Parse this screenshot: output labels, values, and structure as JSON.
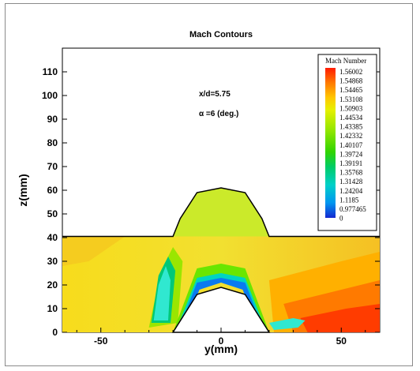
{
  "chart_data": {
    "type": "heatmap",
    "title": "Mach Contours",
    "xlabel": "y(mm)",
    "ylabel": "z(mm)",
    "xlim": [
      -66,
      66
    ],
    "ylim": [
      0,
      120
    ],
    "x_ticks": [
      -50,
      0,
      50
    ],
    "y_ticks": [
      0,
      10,
      20,
      30,
      40,
      50,
      60,
      70,
      80,
      90,
      100,
      110
    ],
    "annotations": [
      "x/d=5.75",
      "α =6 (deg.)"
    ],
    "legend": {
      "title": "Mach Number",
      "placement": "top-right",
      "levels": [
        "1.56002",
        "1.54868",
        "1.54465",
        "1.53108",
        "1.50903",
        "1.44534",
        "1.43385",
        "1.42332",
        "1.40107",
        "1.39724",
        "1.39191",
        "1.35768",
        "1.31428",
        "1.24204",
        "1.1185",
        "0.977465",
        "0"
      ],
      "colors": [
        "#ff1a00",
        "#ff4a00",
        "#ff7a00",
        "#ffb000",
        "#f2e600",
        "#d2f000",
        "#b4ef00",
        "#8ae600",
        "#55dc00",
        "#22d21a",
        "#00cc66",
        "#00d4aa",
        "#00c8cc",
        "#00a8e8",
        "#0070f5",
        "#1a2ed8",
        "#ffffff"
      ]
    },
    "body_outline": [
      [
        -20,
        40
      ],
      [
        -20,
        0
      ],
      [
        -10,
        16
      ],
      [
        0,
        19
      ],
      [
        10,
        16
      ],
      [
        20,
        0
      ],
      [
        20,
        40
      ],
      [
        11,
        59
      ],
      [
        0,
        61
      ],
      [
        -11,
        59
      ],
      [
        -20,
        40
      ]
    ],
    "crossflow_section_top": [
      [
        -66,
        40.5
      ],
      [
        -20,
        40.5
      ],
      [
        -17,
        48
      ],
      [
        -10,
        59
      ],
      [
        0,
        61
      ],
      [
        10,
        59
      ],
      [
        17,
        48
      ],
      [
        20,
        40.5
      ],
      [
        66,
        40.5
      ]
    ]
  }
}
